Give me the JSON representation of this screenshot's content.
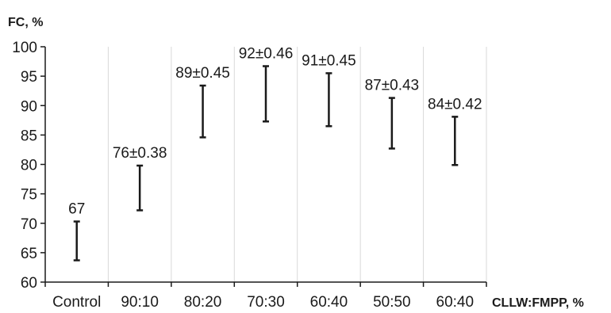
{
  "chart_data": {
    "type": "errorbar",
    "ylabel": "FC, %",
    "xlabel": "CLLW:FMPP, %",
    "ylim": [
      60,
      100
    ],
    "yticks": [
      60,
      65,
      70,
      75,
      80,
      85,
      90,
      95,
      100
    ],
    "grid": "vertical",
    "categories": [
      "Control",
      "90:10",
      "80:20",
      "70:30",
      "60:40",
      "50:50",
      "60:40"
    ],
    "labels": [
      "67",
      "76±0.38",
      "89±0.45",
      "92±0.46",
      "91±0.45",
      "87±0.43",
      "84±0.42"
    ],
    "low": [
      63.7,
      72.2,
      84.6,
      87.3,
      86.5,
      82.7,
      79.9
    ],
    "high": [
      70.3,
      79.8,
      93.4,
      96.7,
      95.5,
      91.3,
      88.1
    ],
    "colors": {
      "bar": "#1a1a1a",
      "axis": "#1a1a1a",
      "grid": "#d9d9d9"
    }
  }
}
